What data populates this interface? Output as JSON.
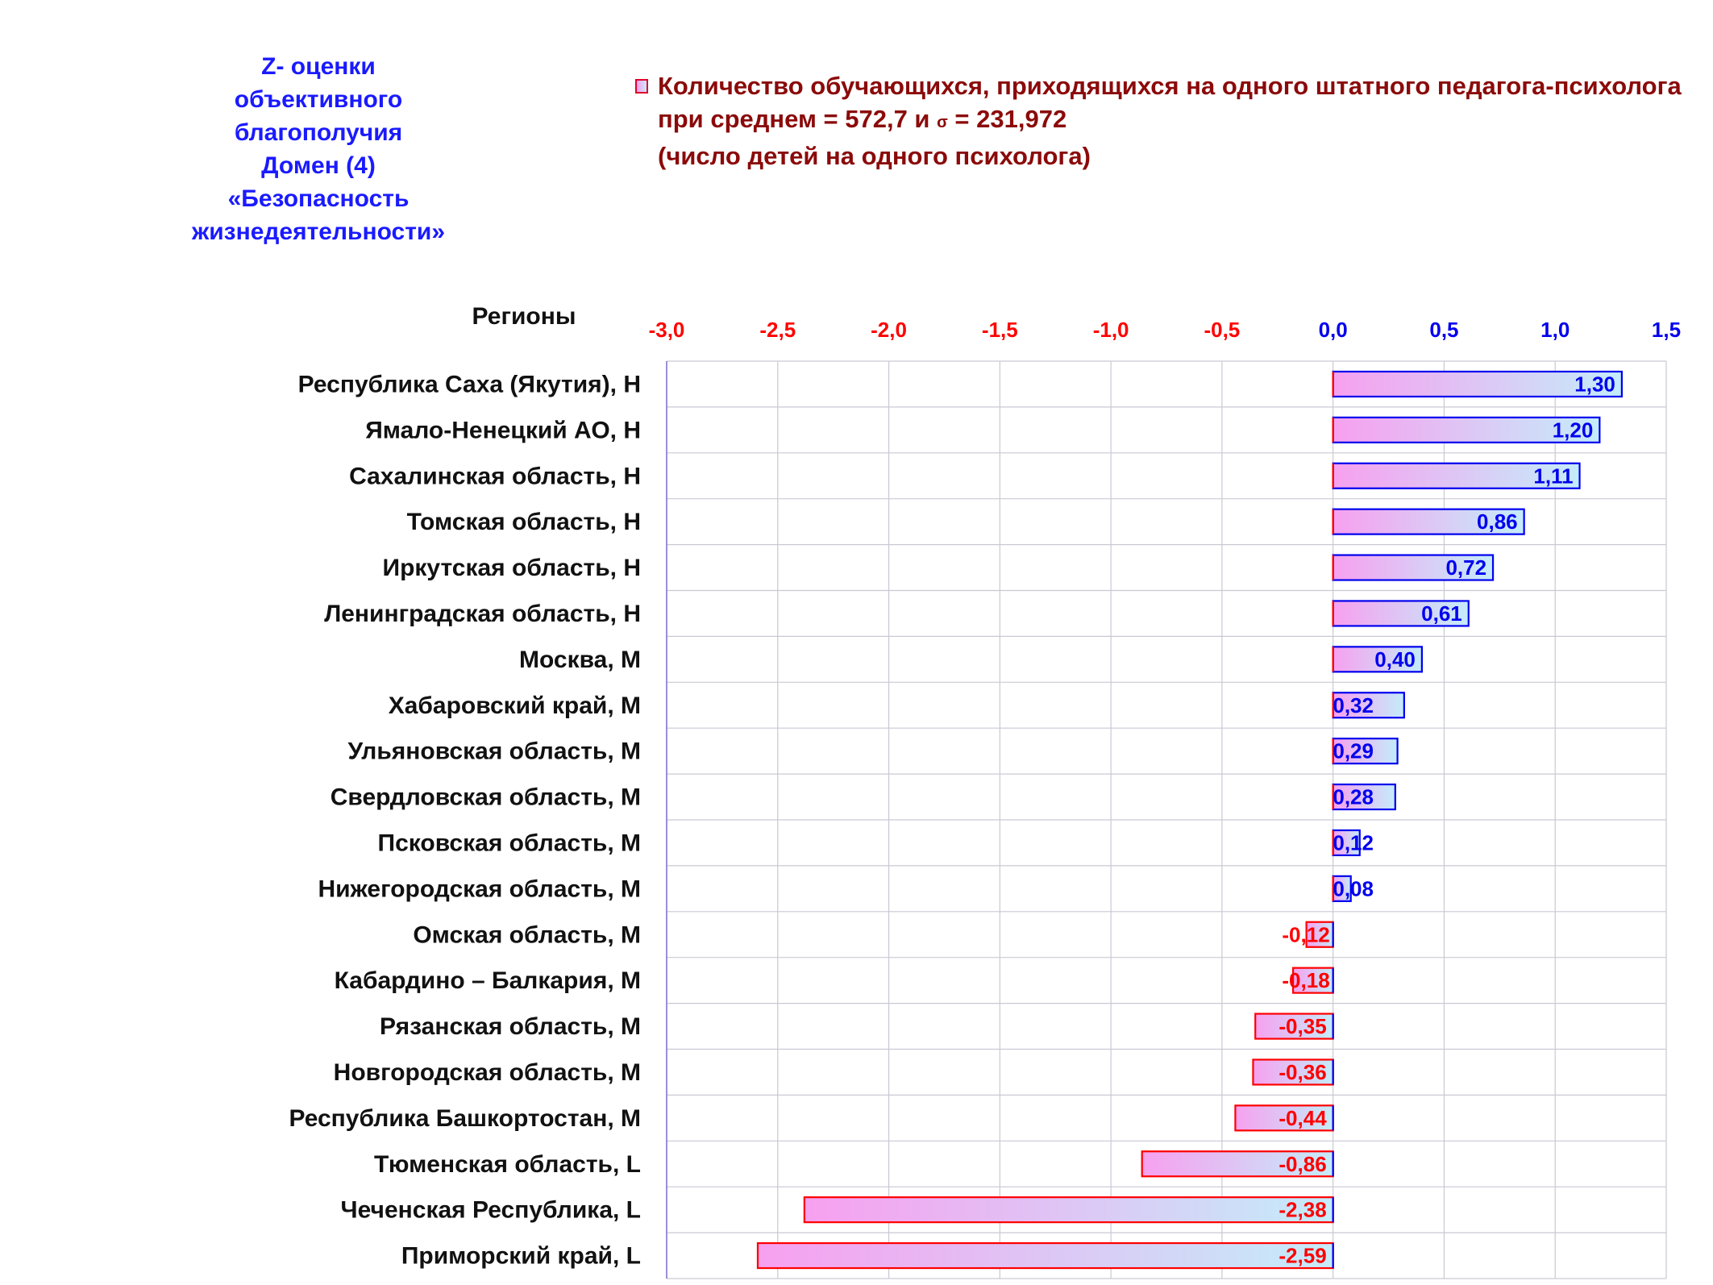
{
  "side_title": {
    "lines": [
      "Z- оценки",
      "объективного",
      "благополучия",
      "Домен (4)",
      "«Безопасность",
      "жизнедеятельности»"
    ]
  },
  "legend": {
    "line1": "Количество обучающихся, приходящихся на одного штатного педагога-психолога",
    "line2_prefix": "при среднем = 572,7  и ",
    "line2_sigma": "σ",
    "line2_suffix": " = 231,972",
    "line3": "(число детей на одного психолога)"
  },
  "regions_header": "Регионы",
  "colors": {
    "title_blue": "#1a1aff",
    "legend_text": "#8b0a0a",
    "negative": "#ff0000",
    "positive": "#0000ee",
    "bar_gradient_start": "#f7a0ef",
    "bar_gradient_end": "#c4ecfa",
    "grid": "#c9c9d4"
  },
  "chart_data": {
    "type": "bar",
    "orientation": "horizontal",
    "xlim": [
      -3.0,
      1.5
    ],
    "x_ticks": [
      "-3,0",
      "-2,5",
      "-2,0",
      "-1,5",
      "-1,0",
      "-0,5",
      "0,0",
      "0,5",
      "1,0",
      "1,5"
    ],
    "x_tick_values": [
      -3.0,
      -2.5,
      -2.0,
      -1.5,
      -1.0,
      -0.5,
      0.0,
      0.5,
      1.0,
      1.5
    ],
    "grid": true,
    "categories": [
      "Республика Саха (Якутия),  Н",
      "Ямало-Ненецкий АО,  Н",
      "Сахалинская область,  Н",
      "Томская область,  Н",
      "Иркутская область,  Н",
      "Ленинградская область,  Н",
      "Москва,  М",
      "Хабаровский край,  М",
      "Ульяновская область,  М",
      "Свердловская область,  М",
      "Псковская область,  М",
      "Нижегородская область,  М",
      "Омская область,  М",
      "Кабардино – Балкария,  М",
      "Рязанская область,  М",
      "Новгородская область,  М",
      "Республика Башкортостан,  М",
      "Тюменская область,  L",
      "Чеченская Республика,  L",
      "Приморский край,  L"
    ],
    "values": [
      1.3,
      1.2,
      1.11,
      0.86,
      0.72,
      0.61,
      0.4,
      0.32,
      0.29,
      0.28,
      0.12,
      0.08,
      -0.12,
      -0.18,
      -0.35,
      -0.36,
      -0.44,
      -0.86,
      -2.38,
      -2.59
    ],
    "value_labels": [
      "1,30",
      "1,20",
      "1,11",
      "0,86",
      "0,72",
      "0,61",
      "0,40",
      "0,32",
      "0,29",
      "0,28",
      "0,12",
      "0,08",
      "-0,12",
      "-0,18",
      "-0,35",
      "-0,36",
      "-0,44",
      "-0,86",
      "-2,38",
      "-2,59"
    ]
  }
}
